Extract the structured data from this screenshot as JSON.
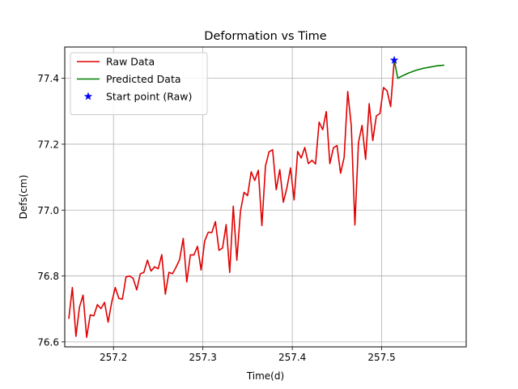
{
  "chart_data": {
    "type": "line",
    "title": "Deformation vs Time",
    "xlabel": "Time(d)",
    "ylabel": "Defs(cm)",
    "xlim": [
      257.1455,
      257.5945
    ],
    "ylim": [
      76.585,
      77.495
    ],
    "grid": true,
    "legend_position": "top-left",
    "x_ticks": [
      257.2,
      257.3,
      257.4,
      257.5
    ],
    "x_tick_labels": [
      "257.2",
      "257.3",
      "257.4",
      "257.5"
    ],
    "y_ticks": [
      76.6,
      76.8,
      77.0,
      77.2,
      77.4
    ],
    "y_tick_labels": [
      "76.6",
      "76.8",
      "77.0",
      "77.2",
      "77.4"
    ],
    "series": [
      {
        "name": "Raw Data",
        "kind": "line",
        "color": "#e00000",
        "points": [
          [
            257.15,
            76.67
          ],
          [
            257.154,
            76.765
          ],
          [
            257.158,
            76.617
          ],
          [
            257.162,
            76.706
          ],
          [
            257.166,
            76.742
          ],
          [
            257.17,
            76.614
          ],
          [
            257.174,
            76.682
          ],
          [
            257.178,
            76.679
          ],
          [
            257.182,
            76.713
          ],
          [
            257.186,
            76.701
          ],
          [
            257.19,
            76.72
          ],
          [
            257.194,
            76.66
          ],
          [
            257.198,
            76.72
          ],
          [
            257.202,
            76.765
          ],
          [
            257.206,
            76.732
          ],
          [
            257.21,
            76.73
          ],
          [
            257.214,
            76.797
          ],
          [
            257.218,
            76.8
          ],
          [
            257.222,
            76.793
          ],
          [
            257.226,
            76.758
          ],
          [
            257.23,
            76.807
          ],
          [
            257.234,
            76.811
          ],
          [
            257.238,
            76.848
          ],
          [
            257.242,
            76.815
          ],
          [
            257.246,
            76.828
          ],
          [
            257.25,
            76.822
          ],
          [
            257.254,
            76.865
          ],
          [
            257.258,
            76.745
          ],
          [
            257.262,
            76.811
          ],
          [
            257.266,
            76.807
          ],
          [
            257.27,
            76.827
          ],
          [
            257.274,
            76.85
          ],
          [
            257.278,
            76.914
          ],
          [
            257.282,
            76.782
          ],
          [
            257.286,
            76.864
          ],
          [
            257.29,
            76.864
          ],
          [
            257.294,
            76.89
          ],
          [
            257.298,
            76.818
          ],
          [
            257.302,
            76.906
          ],
          [
            257.306,
            76.933
          ],
          [
            257.31,
            76.932
          ],
          [
            257.314,
            76.965
          ],
          [
            257.318,
            76.878
          ],
          [
            257.322,
            76.885
          ],
          [
            257.326,
            76.956
          ],
          [
            257.33,
            76.811
          ],
          [
            257.334,
            77.012
          ],
          [
            257.338,
            76.848
          ],
          [
            257.342,
            76.996
          ],
          [
            257.346,
            77.054
          ],
          [
            257.35,
            77.044
          ],
          [
            257.354,
            77.116
          ],
          [
            257.358,
            77.09
          ],
          [
            257.362,
            77.121
          ],
          [
            257.366,
            76.953
          ],
          [
            257.37,
            77.134
          ],
          [
            257.374,
            77.177
          ],
          [
            257.378,
            77.183
          ],
          [
            257.382,
            77.062
          ],
          [
            257.386,
            77.123
          ],
          [
            257.39,
            77.024
          ],
          [
            257.394,
            77.068
          ],
          [
            257.398,
            77.128
          ],
          [
            257.402,
            77.031
          ],
          [
            257.406,
            77.178
          ],
          [
            257.41,
            77.158
          ],
          [
            257.414,
            77.19
          ],
          [
            257.418,
            77.141
          ],
          [
            257.422,
            77.151
          ],
          [
            257.426,
            77.14
          ],
          [
            257.43,
            77.267
          ],
          [
            257.434,
            77.244
          ],
          [
            257.438,
            77.299
          ],
          [
            257.442,
            77.141
          ],
          [
            257.446,
            77.189
          ],
          [
            257.45,
            77.196
          ],
          [
            257.454,
            77.112
          ],
          [
            257.458,
            77.16
          ],
          [
            257.462,
            77.36
          ],
          [
            257.466,
            77.255
          ],
          [
            257.47,
            76.955
          ],
          [
            257.474,
            77.205
          ],
          [
            257.478,
            77.257
          ],
          [
            257.482,
            77.154
          ],
          [
            257.486,
            77.323
          ],
          [
            257.49,
            77.211
          ],
          [
            257.494,
            77.286
          ],
          [
            257.498,
            77.293
          ],
          [
            257.502,
            77.372
          ],
          [
            257.506,
            77.362
          ],
          [
            257.51,
            77.314
          ],
          [
            257.514,
            77.455
          ]
        ]
      },
      {
        "name": "Predicted Data",
        "kind": "line",
        "color": "#008000",
        "points": [
          [
            257.514,
            77.455
          ],
          [
            257.518,
            77.4
          ],
          [
            257.522,
            77.406
          ],
          [
            257.526,
            77.411
          ],
          [
            257.53,
            77.416
          ],
          [
            257.534,
            77.42
          ],
          [
            257.538,
            77.424
          ],
          [
            257.542,
            77.427
          ],
          [
            257.546,
            77.43
          ],
          [
            257.55,
            77.432
          ],
          [
            257.554,
            77.434
          ],
          [
            257.558,
            77.436
          ],
          [
            257.562,
            77.438
          ],
          [
            257.566,
            77.439
          ],
          [
            257.57,
            77.44
          ]
        ]
      },
      {
        "name": "Start point (Raw)",
        "kind": "marker",
        "marker": "star",
        "color": "#0000ff",
        "points": [
          [
            257.514,
            77.455
          ]
        ]
      }
    ]
  }
}
